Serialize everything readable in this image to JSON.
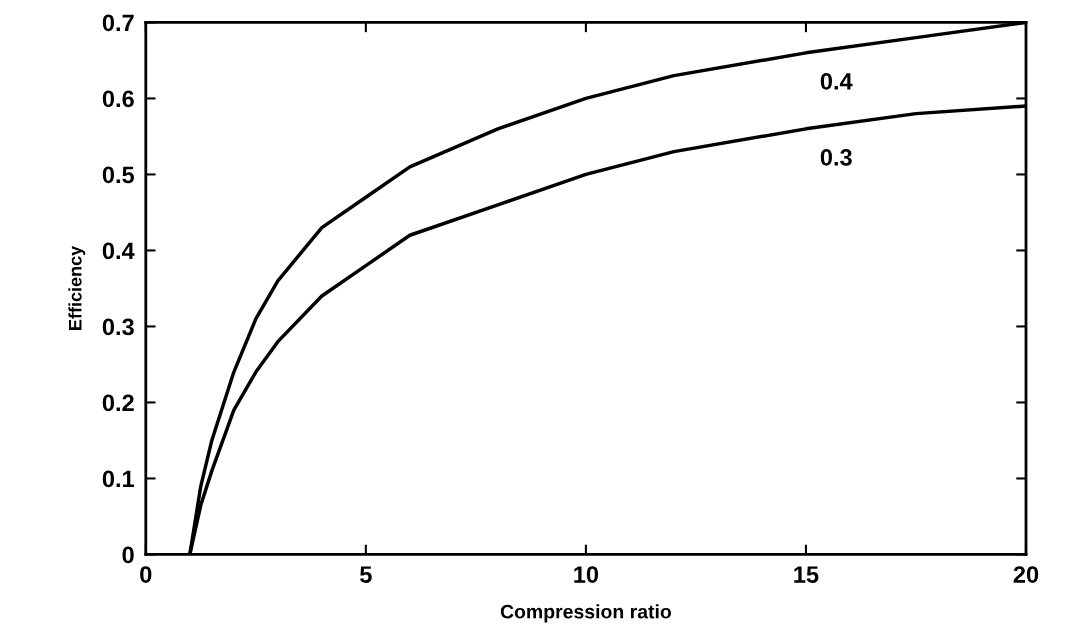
{
  "chart_data": {
    "type": "line",
    "xlabel": "Compression ratio",
    "ylabel": "Efficiency",
    "x": [
      1,
      1.25,
      1.5,
      2,
      2.5,
      3,
      4,
      5,
      6,
      8,
      10,
      12,
      15,
      17.5,
      20
    ],
    "series": [
      {
        "name": "0.4",
        "color": "#000000",
        "values": [
          0,
          0.09,
          0.15,
          0.24,
          0.31,
          0.36,
          0.43,
          0.47,
          0.51,
          0.56,
          0.6,
          0.63,
          0.66,
          0.68,
          0.7
        ]
      },
      {
        "name": "0.3",
        "color": "#000000",
        "values": [
          0,
          0.065,
          0.11,
          0.19,
          0.24,
          0.28,
          0.34,
          0.38,
          0.42,
          0.46,
          0.5,
          0.53,
          0.56,
          0.58,
          0.59
        ]
      }
    ],
    "xlim": [
      0,
      20
    ],
    "ylim": [
      0,
      0.7
    ],
    "xticks": [
      0,
      5,
      10,
      15,
      20
    ],
    "yticks": [
      0,
      0.1,
      0.2,
      0.3,
      0.4,
      0.5,
      0.6,
      0.7
    ],
    "grid": false,
    "legend": false,
    "marker": "none",
    "line_style": "solid"
  }
}
